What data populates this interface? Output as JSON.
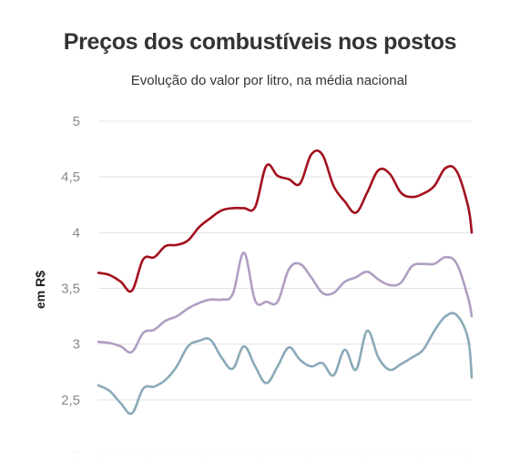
{
  "chart_data": {
    "type": "line",
    "title": "Preços dos combustíveis nos postos",
    "subtitle": "Evolução do valor por litro, na média nacional",
    "ylabel": "em R$",
    "xlabel": "",
    "ylim": [
      2,
      5
    ],
    "yticks": [
      "2",
      "2,5",
      "3",
      "3,5",
      "4",
      "4,5",
      "5"
    ],
    "grid": true,
    "x": [
      0,
      3,
      6,
      9,
      12,
      15,
      18,
      21,
      24,
      27,
      30,
      33,
      36,
      39,
      42,
      45,
      48,
      51,
      54,
      57,
      60,
      63,
      66,
      69,
      72,
      75,
      78,
      81,
      84,
      87,
      90,
      93,
      96,
      99,
      100
    ],
    "series": [
      {
        "color": "#a3101d",
        "values": [
          3.64,
          3.62,
          3.56,
          3.48,
          3.76,
          3.78,
          3.88,
          3.89,
          3.93,
          4.05,
          4.13,
          4.2,
          4.22,
          4.22,
          4.23,
          4.6,
          4.51,
          4.48,
          4.44,
          4.7,
          4.7,
          4.42,
          4.28,
          4.18,
          4.36,
          4.56,
          4.53,
          4.36,
          4.32,
          4.35,
          4.42,
          4.58,
          4.55,
          4.24,
          4.0
        ]
      },
      {
        "color": "#b09ec2",
        "values": [
          3.02,
          3.01,
          2.98,
          2.93,
          3.1,
          3.13,
          3.21,
          3.25,
          3.32,
          3.37,
          3.4,
          3.4,
          3.45,
          3.82,
          3.39,
          3.38,
          3.38,
          3.67,
          3.72,
          3.6,
          3.46,
          3.46,
          3.56,
          3.6,
          3.65,
          3.58,
          3.53,
          3.55,
          3.7,
          3.72,
          3.72,
          3.78,
          3.72,
          3.42,
          3.25
        ]
      },
      {
        "color": "#8aaab8",
        "values": [
          2.63,
          2.58,
          2.47,
          2.38,
          2.6,
          2.62,
          2.68,
          2.8,
          2.98,
          3.03,
          3.04,
          2.88,
          2.78,
          2.98,
          2.8,
          2.65,
          2.8,
          2.97,
          2.86,
          2.8,
          2.83,
          2.72,
          2.95,
          2.77,
          3.12,
          2.88,
          2.77,
          2.82,
          2.88,
          2.95,
          3.12,
          3.25,
          3.26,
          3.05,
          2.7
        ]
      }
    ]
  }
}
